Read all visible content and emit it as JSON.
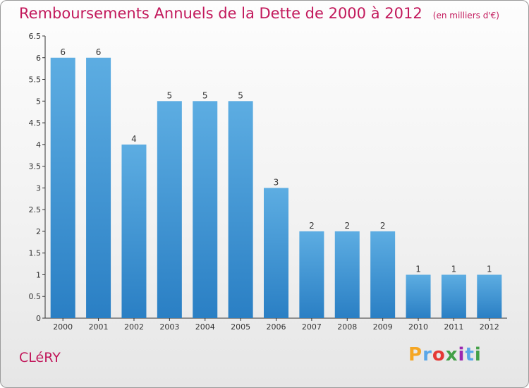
{
  "header": {
    "title": "Remboursements Annuels de la Dette de 2000 à 2012",
    "unit": "(en milliers d'€)"
  },
  "footer": {
    "place": "CLéRY",
    "logo": "Proxiti"
  },
  "colors": {
    "bar_light": "#5dade2",
    "bar_dark": "#2a7fc4",
    "title": "#c2185b",
    "axis": "#333333"
  },
  "chart_data": {
    "type": "bar",
    "title": "Remboursements Annuels de la Dette de 2000 à 2012",
    "subtitle": "(en milliers d'€)",
    "xlabel": "",
    "ylabel": "",
    "categories": [
      "2000",
      "2001",
      "2002",
      "2003",
      "2004",
      "2005",
      "2006",
      "2007",
      "2008",
      "2009",
      "2010",
      "2011",
      "2012"
    ],
    "values": [
      6,
      6,
      4,
      5,
      5,
      5,
      3,
      2,
      2,
      2,
      1,
      1,
      1
    ],
    "data_labels": [
      "6",
      "6",
      "4",
      "5",
      "5",
      "5",
      "3",
      "2",
      "2",
      "2",
      "1",
      "1",
      "1"
    ],
    "ylim": [
      0,
      6.5
    ],
    "yticks": [
      "0",
      "0.5",
      "1",
      "1.5",
      "2",
      "2.5",
      "3",
      "3.5",
      "4",
      "4.5",
      "5",
      "5.5",
      "6",
      "6.5"
    ],
    "grid": false,
    "legend": "none"
  }
}
